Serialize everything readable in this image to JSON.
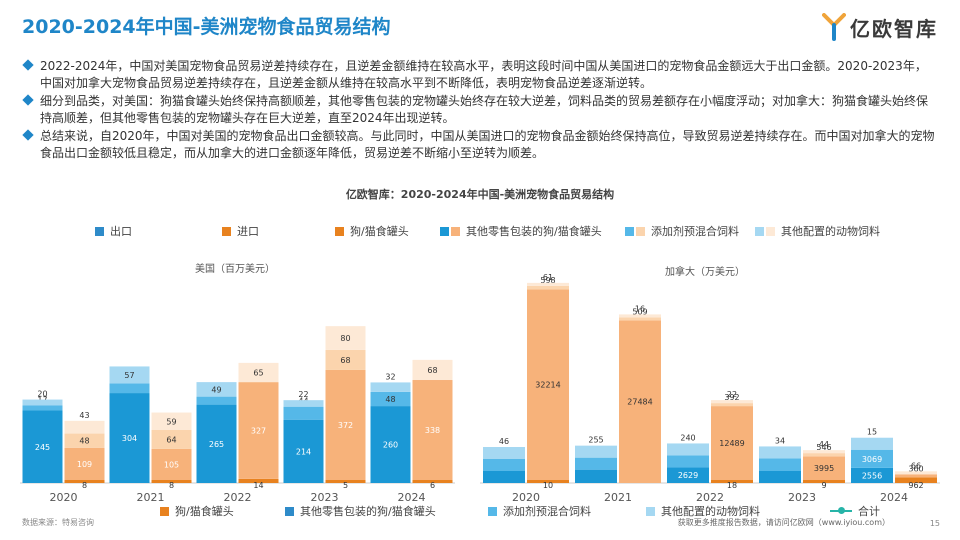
{
  "page": {
    "title": "2020-2024年中国-美洲宠物食品贸易结构",
    "brand": "亿欧智库",
    "bullets": [
      "2022-2024年，中国对美国宠物食品贸易逆差持续存在，且逆差金额维持在较高水平，表明这段时间中国从美国进口的宠物食品金额远大于出口金额。2020-2023年，中国对加拿大宠物食品贸易逆差持续存在，且逆差金额从维持在较高水平到不断降低，表明宠物食品逆差逐渐逆转。",
      "细分到品类，对美国：狗猫食罐头始终保持高额顺差，其他零售包装的宠物罐头始终存在较大逆差，饲料品类的贸易差额存在小幅度浮动；对加拿大：狗猫食罐头始终保持高顺差，但其他零售包装的宠物罐头存在巨大逆差，直至2024年出现逆转。",
      "总结来说，自2020年，中国对美国的宠物食品出口金额较高。与此同时，中国从美国进口的宠物食品金额始终保持高位，导致贸易逆差持续存在。而中国对加拿大的宠物食品出口金额较低且稳定，而从加拿大的进口金额逐年降低，贸易逆差不断缩小至逆转为顺差。"
    ],
    "chart_title": "亿欧智库：2020-2024年中国-美洲宠物食品贸易结构",
    "source": "数据来源：特易咨询",
    "footer": "获取更多推度报告数据，请访问亿欧网（www.iyiou.com）",
    "page_number": "15"
  },
  "legend_top": {
    "export": "出口",
    "import": "进口",
    "cat1": "狗/猫食罐头",
    "cat2": "其他零售包装的狗/猫食罐头",
    "cat3": "添加剂预混合饲料",
    "cat4": "其他配置的动物饲料"
  },
  "legend_bottom": {
    "cat1": "狗/猫食罐头",
    "cat2": "其他零售包装的狗/猫食罐头",
    "cat3": "添加剂预混合饲料",
    "cat4": "其他配置的动物饲料",
    "total": "合计"
  },
  "colors": {
    "export": [
      "#2e8bc9",
      "#1b98d5",
      "#55b8e8",
      "#a5d8f2"
    ],
    "import": [
      "#e8821f",
      "#f7b27a",
      "#fbd4ad",
      "#fde9d6"
    ],
    "title": "#1f86c8"
  },
  "chart_data": [
    {
      "type": "bar",
      "title": "美国（百万美元）",
      "categories": [
        "2020",
        "2021",
        "2022",
        "2023",
        "2024"
      ],
      "export": {
        "series": [
          {
            "name": "狗/猫食罐头",
            "values": [
              0,
              0,
              0,
              0,
              0
            ]
          },
          {
            "name": "其他零售包装的狗/猫食罐头",
            "values": [
              245,
              304,
              265,
              214,
              260
            ]
          },
          {
            "name": "添加剂预混合饲料",
            "values": [
              17,
              33,
              27,
              44,
              48
            ]
          },
          {
            "name": "其他配置的动物饲料",
            "values": [
              20,
              57,
              49,
              22,
              32
            ]
          }
        ]
      },
      "import": {
        "series": [
          {
            "name": "狗/猫食罐头",
            "values": [
              8,
              8,
              14,
              5,
              6
            ]
          },
          {
            "name": "其他零售包装的狗/猫食罐头",
            "values": [
              109,
              105,
              327,
              372,
              338
            ]
          },
          {
            "name": "添加剂预混合饲料",
            "values": [
              48,
              64,
              0,
              68,
              0
            ]
          },
          {
            "name": "其他配置的动物饲料",
            "values": [
              43,
              59,
              65,
              80,
              68
            ]
          }
        ]
      },
      "ylim": [
        0,
        720
      ]
    },
    {
      "type": "bar",
      "title": "加拿大（万美元）",
      "categories": [
        "2020",
        "2021",
        "2022",
        "2023",
        "2024"
      ],
      "export": {
        "series": [
          {
            "name": "狗/猫食罐头",
            "values": [
              1916,
              2257,
              2629,
              2025,
              2556
            ]
          },
          {
            "name": "添加剂预混合饲料",
            "values": [
              1382,
              1413,
              1817,
              2124,
              3069
            ]
          },
          {
            "name": "其他配置的动物饲料",
            "values": [
              46,
              255,
              240,
              34,
              15
            ]
          }
        ]
      },
      "import": {
        "series": [
          {
            "name": "狗/猫食罐头",
            "values": [
              10,
              0,
              18,
              9,
              962
            ]
          },
          {
            "name": "其他零售包装的狗/猫食罐头",
            "values": [
              32214,
              27484,
              12489,
              3995,
              360
            ]
          },
          {
            "name": "添加剂预混合饲料",
            "values": [
              598,
              509,
              392,
              546,
              0
            ]
          },
          {
            "name": "其他配置的动物饲料",
            "values": [
              61,
              16,
              22,
              44,
              66
            ]
          }
        ]
      },
      "ylim": [
        0,
        36000
      ]
    }
  ]
}
